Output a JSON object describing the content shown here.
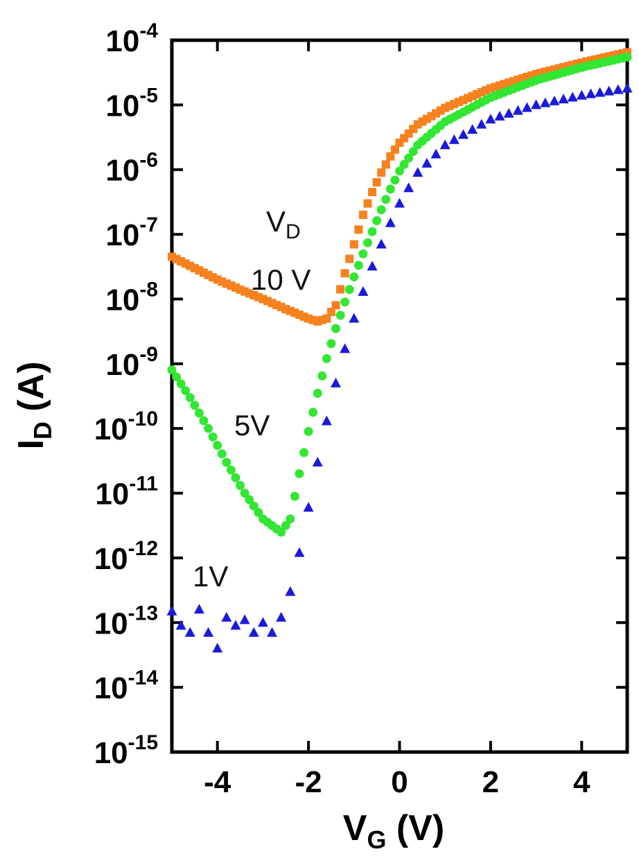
{
  "chart_data": {
    "type": "scatter",
    "xlabel": {
      "main": "V",
      "sub": "G",
      "rest": " (V)"
    },
    "ylabel": {
      "main": "I",
      "sub": "D",
      "rest": " (A)"
    },
    "xlim": [
      -5,
      5
    ],
    "ylim_log10": [
      -15,
      -4
    ],
    "y_scale": "log",
    "grid": false,
    "x_ticks": [
      {
        "value": -4,
        "label": "-4"
      },
      {
        "value": -2,
        "label": "-2"
      },
      {
        "value": 0,
        "label": "0"
      },
      {
        "value": 2,
        "label": "2"
      },
      {
        "value": 4,
        "label": "4"
      }
    ],
    "y_ticks": [
      {
        "exp": -4,
        "base": "10",
        "sup": "-4"
      },
      {
        "exp": -5,
        "base": "10",
        "sup": "-5"
      },
      {
        "exp": -6,
        "base": "10",
        "sup": "-6"
      },
      {
        "exp": -7,
        "base": "10",
        "sup": "-7"
      },
      {
        "exp": -8,
        "base": "10",
        "sup": "-8"
      },
      {
        "exp": -9,
        "base": "10",
        "sup": "-9"
      },
      {
        "exp": -10,
        "base": "10",
        "sup": "-10"
      },
      {
        "exp": -11,
        "base": "10",
        "sup": "-11"
      },
      {
        "exp": -12,
        "base": "10",
        "sup": "-12"
      },
      {
        "exp": -13,
        "base": "10",
        "sup": "-13"
      },
      {
        "exp": -14,
        "base": "10",
        "sup": "-14"
      },
      {
        "exp": -15,
        "base": "10",
        "sup": "-15"
      }
    ],
    "legend_annotations": {
      "header": {
        "main": "V",
        "sub": "D"
      },
      "labels": [
        "10 V",
        "5V",
        "1V"
      ]
    },
    "series": [
      {
        "name": "10 V",
        "color": "#f5821f",
        "marker": "square",
        "points": [
          [
            -5.0,
            4.5e-08
          ],
          [
            -4.5,
            3e-08
          ],
          [
            -4.0,
            2e-08
          ],
          [
            -3.5,
            1.4e-08
          ],
          [
            -3.0,
            1e-08
          ],
          [
            -2.5,
            7e-09
          ],
          [
            -2.0,
            5e-09
          ],
          [
            -1.8,
            4.5e-09
          ],
          [
            -1.6,
            5e-09
          ],
          [
            -1.4,
            8e-09
          ],
          [
            -1.2,
            2.5e-08
          ],
          [
            -1.0,
            7e-08
          ],
          [
            -0.8,
            2e-07
          ],
          [
            -0.6,
            4.5e-07
          ],
          [
            -0.4,
            9e-07
          ],
          [
            -0.2,
            1.6e-06
          ],
          [
            0.0,
            2.6e-06
          ],
          [
            0.4,
            5e-06
          ],
          [
            1.0,
            9e-06
          ],
          [
            2.0,
            1.8e-05
          ],
          [
            3.0,
            3e-05
          ],
          [
            4.0,
            4.5e-05
          ],
          [
            5.0,
            6.5e-05
          ]
        ]
      },
      {
        "name": "5V",
        "color": "#33e633",
        "marker": "circle",
        "points": [
          [
            -5.0,
            8e-10
          ],
          [
            -4.6,
            3e-10
          ],
          [
            -4.2,
            1e-10
          ],
          [
            -3.8,
            3e-11
          ],
          [
            -3.4,
            1e-11
          ],
          [
            -3.0,
            4e-12
          ],
          [
            -2.6,
            2.5e-12
          ],
          [
            -2.4,
            4e-12
          ],
          [
            -2.2,
            2e-11
          ],
          [
            -2.0,
            9e-11
          ],
          [
            -1.8,
            3.5e-10
          ],
          [
            -1.6,
            1.2e-09
          ],
          [
            -1.4,
            3.5e-09
          ],
          [
            -1.2,
            9e-09
          ],
          [
            -1.0,
            2.2e-08
          ],
          [
            -0.8,
            5e-08
          ],
          [
            -0.6,
            1.1e-07
          ],
          [
            -0.4,
            2.4e-07
          ],
          [
            -0.2,
            5e-07
          ],
          [
            0.0,
            9.5e-07
          ],
          [
            0.4,
            2.4e-06
          ],
          [
            1.0,
            5.5e-06
          ],
          [
            2.0,
            1.3e-05
          ],
          [
            3.0,
            2.4e-05
          ],
          [
            4.0,
            3.8e-05
          ],
          [
            5.0,
            5.5e-05
          ]
        ]
      },
      {
        "name": "1V",
        "color": "#1a1adb",
        "marker": "triangle",
        "points": [
          [
            -5.0,
            1.5e-13
          ],
          [
            -4.8,
            9e-14
          ],
          [
            -4.6,
            7e-14
          ],
          [
            -4.4,
            1.6e-13
          ],
          [
            -4.2,
            7e-14
          ],
          [
            -4.0,
            4e-14
          ],
          [
            -3.8,
            1.2e-13
          ],
          [
            -3.6,
            9e-14
          ],
          [
            -3.4,
            1.1e-13
          ],
          [
            -3.2,
            7e-14
          ],
          [
            -3.0,
            1e-13
          ],
          [
            -2.8,
            7e-14
          ],
          [
            -2.6,
            1.2e-13
          ],
          [
            -2.4,
            3e-13
          ],
          [
            -2.2,
            1.2e-12
          ],
          [
            -2.0,
            6e-12
          ],
          [
            -1.8,
            3e-11
          ],
          [
            -1.6,
            1.3e-10
          ],
          [
            -1.4,
            5e-10
          ],
          [
            -1.2,
            1.7e-09
          ],
          [
            -1.0,
            5e-09
          ],
          [
            -0.8,
            1.3e-08
          ],
          [
            -0.6,
            3.2e-08
          ],
          [
            -0.4,
            7e-08
          ],
          [
            -0.2,
            1.5e-07
          ],
          [
            0.0,
            3e-07
          ],
          [
            0.4,
            9e-07
          ],
          [
            1.0,
            2.4e-06
          ],
          [
            2.0,
            6e-06
          ],
          [
            3.0,
            1e-05
          ],
          [
            4.0,
            1.4e-05
          ],
          [
            5.0,
            1.8e-05
          ]
        ]
      }
    ]
  }
}
